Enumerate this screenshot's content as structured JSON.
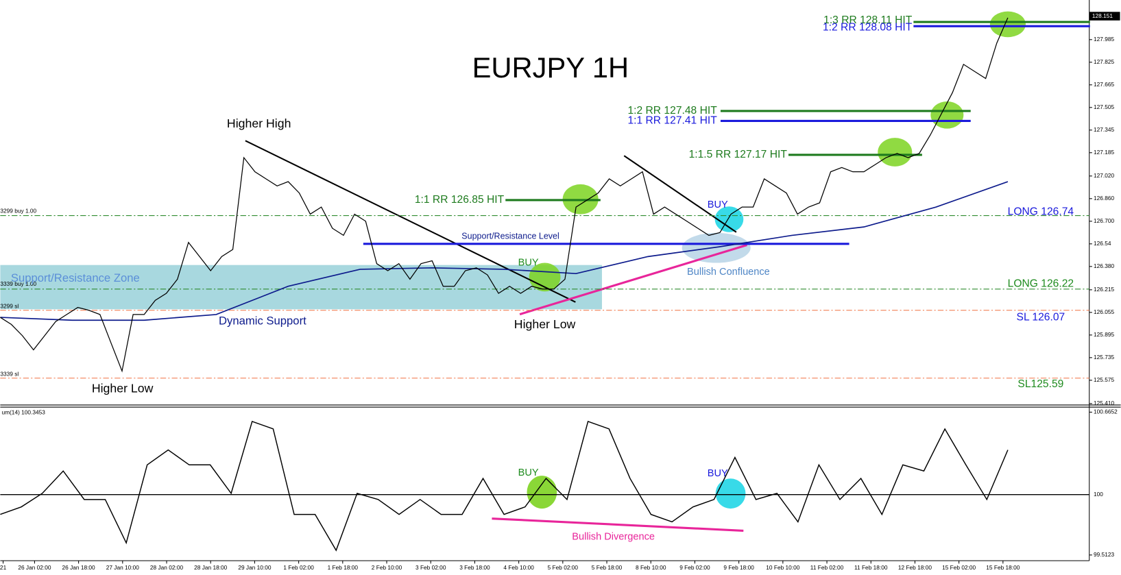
{
  "chart_data": [
    {
      "type": "line",
      "title": "EURJPY 1H",
      "color": "#000000",
      "values": [
        126.02,
        125.97,
        125.89,
        125.79,
        125.89,
        125.99,
        126.04,
        126.09,
        126.07,
        126.04,
        125.84,
        125.64,
        126.04,
        126.04,
        126.14,
        126.19,
        126.29,
        126.55,
        126.45,
        126.35,
        126.45,
        126.5,
        127.15,
        127.05,
        127.0,
        126.95,
        126.98,
        126.9,
        126.75,
        126.8,
        126.65,
        126.6,
        126.75,
        126.7,
        126.4,
        126.35,
        126.4,
        126.29,
        126.4,
        126.42,
        126.24,
        126.24,
        126.35,
        126.37,
        126.32,
        126.19,
        126.24,
        126.19,
        126.24,
        126.22,
        126.22,
        126.29,
        126.8,
        126.85,
        126.9,
        127.0,
        126.95,
        127.0,
        127.05,
        126.75,
        126.8,
        126.75,
        126.7,
        126.65,
        126.6,
        126.62,
        126.75,
        126.8,
        126.8,
        127.0,
        126.95,
        126.9,
        126.75,
        126.8,
        126.83,
        127.05,
        127.08,
        127.05,
        127.05,
        127.1,
        127.15,
        127.18,
        127.15,
        127.18,
        127.31,
        127.46,
        127.61,
        127.81,
        127.76,
        127.71,
        127.96,
        128.14
      ],
      "ma_color": "#0d1b8c",
      "ma_values": [
        126.02,
        126.0,
        126.0,
        126.04,
        126.24,
        126.36,
        126.37,
        126.36,
        126.33,
        126.45,
        126.52,
        126.6,
        126.66,
        126.8,
        126.98
      ],
      "ylim": [
        125.41,
        128.24
      ],
      "yticks": [
        127.985,
        127.825,
        127.665,
        127.505,
        127.345,
        127.185,
        {
          "value": 127.02,
          "label": "127.020"
        },
        {
          "value": 126.86,
          "label": "126.860"
        },
        {
          "value": 126.7,
          "label": "126.700"
        },
        126.54,
        {
          "value": 126.38,
          "label": "126.380"
        },
        126.215,
        126.055,
        125.895,
        125.735,
        125.575,
        {
          "value": 125.41,
          "label": "125.410"
        }
      ],
      "current_price": 128.151,
      "xlabels": [
        "21",
        "26 Jan 02:00",
        "26 Jan 18:00",
        "27 Jan 10:00",
        "28 Jan 02:00",
        "28 Jan 18:00",
        "29 Jan 10:00",
        "1 Feb 02:00",
        "1 Feb 18:00",
        "2 Feb 10:00",
        "3 Feb 02:00",
        "3 Feb 18:00",
        "4 Feb 10:00",
        "5 Feb 02:00",
        "5 Feb 18:00",
        "8 Feb 10:00",
        "9 Feb 02:00",
        "9 Feb 18:00",
        "10 Feb 10:00",
        "11 Feb 02:00",
        "11 Feb 18:00",
        "12 Feb 18:00",
        "15 Feb 02:00",
        "15 Feb 18:00"
      ],
      "levels": [
        {
          "label": "1:1 RR 126.85 HIT",
          "value": 126.85,
          "color": "#1e7b1e"
        },
        {
          "label": "1:1.5 RR 127.17 HIT",
          "value": 127.17,
          "color": "#1e7b1e"
        },
        {
          "label": "1:2 RR 127.48 HIT",
          "value": 127.48,
          "color": "#1e7b1e"
        },
        {
          "label": "1:1 RR 127.41 HIT",
          "value": 127.41,
          "color": "#1a1adc"
        },
        {
          "label": "1:3 RR 128.11 HIT",
          "value": 128.11,
          "color": "#1e7b1e"
        },
        {
          "label": "1:2 RR 128.08 HIT",
          "value": 128.08,
          "color": "#1a1adc"
        },
        {
          "label": "LONG 126.74",
          "value": 126.74,
          "color": "#1a1adc"
        },
        {
          "label": "LONG 126.22",
          "value": 126.22,
          "color": "#1e8b1e"
        },
        {
          "label": "SL 126.07",
          "value": 126.07,
          "color": "#1a1adc"
        },
        {
          "label": "SL125.59",
          "value": 125.59,
          "color": "#1e8b1e"
        },
        {
          "label": "Support/Resistance Level",
          "value": 126.54,
          "color": "#1a1adc"
        }
      ],
      "annotations": [
        "Higher High",
        "Higher Low",
        "Higher Low",
        "Dynamic Support",
        "Support/Resistance Zone",
        "BUY",
        "BUY",
        "Bullish Confluence"
      ],
      "order_labels": [
        "3299 buy 1.00",
        "3339 buy 1.00",
        "3299 sl",
        "3339 sl"
      ]
    },
    {
      "type": "line",
      "label": "um(14) 100.3453",
      "color": "#000000",
      "values": [
        99.84,
        99.9,
        100.01,
        100.19,
        99.96,
        99.96,
        99.61,
        100.24,
        100.36,
        100.24,
        100.24,
        100.01,
        100.59,
        100.53,
        99.84,
        99.84,
        99.55,
        100.01,
        99.96,
        99.84,
        99.96,
        99.84,
        99.84,
        100.13,
        99.84,
        99.9,
        100.13,
        99.96,
        100.59,
        100.53,
        100.13,
        99.84,
        99.78,
        99.9,
        99.96,
        100.3,
        99.96,
        100.01,
        99.78,
        100.24,
        99.96,
        100.13,
        99.84,
        100.24,
        100.19,
        100.53,
        100.24,
        99.96,
        100.36
      ],
      "ylim": [
        99.5123,
        100.6652
      ],
      "yticks": [
        100.6652,
        100,
        99.5123
      ],
      "annotations": [
        "BUY",
        "BUY",
        "Bullish Divergence"
      ]
    }
  ]
}
